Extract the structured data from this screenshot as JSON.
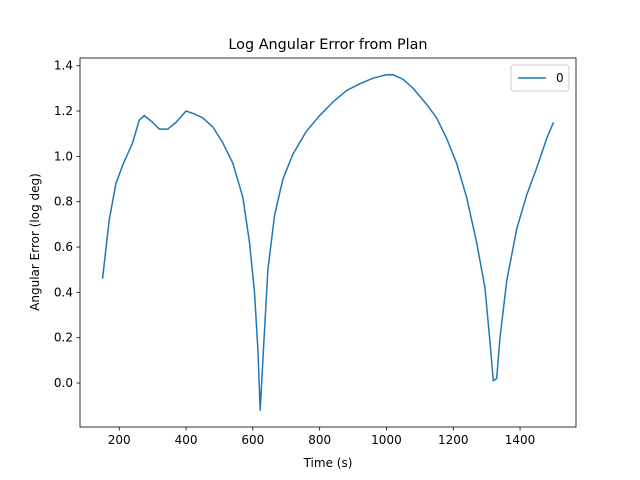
{
  "chart_data": {
    "type": "line",
    "title": "Log Angular Error from Plan",
    "x_label": "Time (s)",
    "y_label": "Angular Error (log deg)",
    "x": [
      150,
      170,
      190,
      210,
      240,
      260,
      275,
      300,
      320,
      345,
      370,
      400,
      420,
      450,
      480,
      510,
      540,
      570,
      590,
      605,
      615,
      622,
      630,
      645,
      665,
      690,
      720,
      760,
      800,
      840,
      880,
      920,
      960,
      1000,
      1020,
      1050,
      1080,
      1120,
      1150,
      1180,
      1210,
      1240,
      1270,
      1295,
      1310,
      1320,
      1330,
      1340,
      1360,
      1390,
      1420,
      1450,
      1480,
      1500
    ],
    "series": [
      {
        "name": "0",
        "color": "#1f77b4",
        "values": [
          0.46,
          0.72,
          0.88,
          0.96,
          1.06,
          1.16,
          1.18,
          1.15,
          1.12,
          1.12,
          1.15,
          1.2,
          1.19,
          1.17,
          1.13,
          1.06,
          0.97,
          0.82,
          0.62,
          0.4,
          0.15,
          -0.12,
          0.1,
          0.5,
          0.74,
          0.9,
          1.01,
          1.11,
          1.18,
          1.24,
          1.29,
          1.32,
          1.345,
          1.36,
          1.36,
          1.34,
          1.3,
          1.23,
          1.17,
          1.08,
          0.97,
          0.82,
          0.62,
          0.42,
          0.18,
          0.01,
          0.02,
          0.2,
          0.45,
          0.68,
          0.83,
          0.95,
          1.08,
          1.15
        ]
      }
    ],
    "xlim": [
      82.5,
      1567.5
    ],
    "xticks": [
      200,
      400,
      600,
      800,
      1000,
      1200,
      1400
    ],
    "ylim": [
      -0.194,
      1.434
    ],
    "yticks": [
      {
        "value": 0,
        "label": "0.0"
      },
      0.2,
      0.4,
      0.6,
      0.8,
      {
        "value": 1,
        "label": "1.0"
      },
      1.2,
      1.4
    ],
    "legend": "upper right",
    "grid": false
  }
}
